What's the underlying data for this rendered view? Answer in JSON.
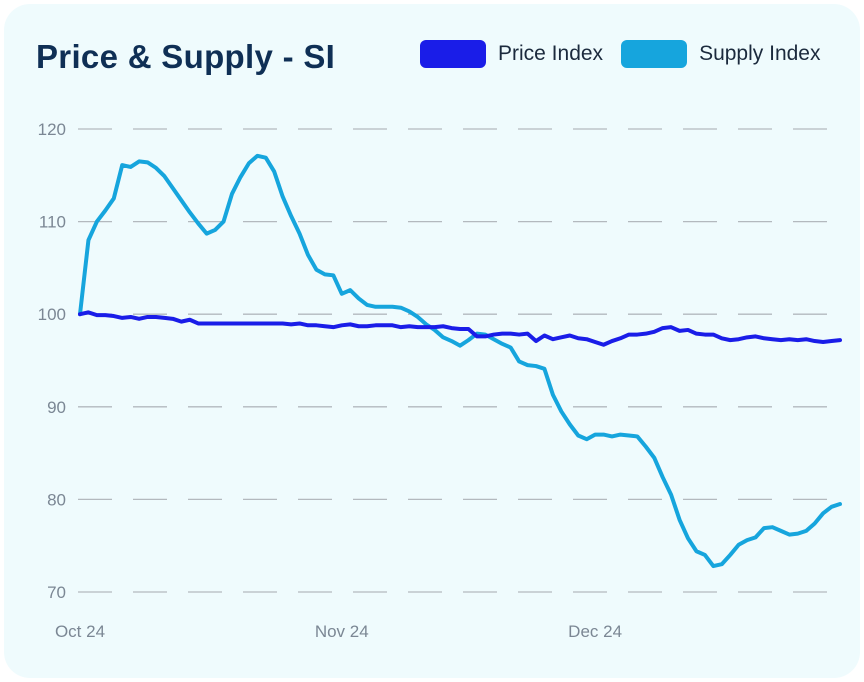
{
  "chart_data": {
    "type": "line",
    "title": "Price & Supply - SI",
    "xlabel": "",
    "ylabel": "",
    "ylim": [
      70,
      120
    ],
    "yticks": [
      120,
      110,
      100,
      90,
      80,
      70
    ],
    "xticks": [
      {
        "label": "Oct 24",
        "index": 0
      },
      {
        "label": "Nov 24",
        "index": 31
      },
      {
        "label": "Dec 24",
        "index": 61
      }
    ],
    "grid": true,
    "legend_position": "top-right",
    "series": [
      {
        "name": "Price Index",
        "color": "#1a1de8",
        "values": [
          100,
          100.2,
          99.9,
          99.9,
          99.8,
          99.6,
          99.7,
          99.5,
          99.7,
          99.7,
          99.6,
          99.5,
          99.2,
          99.4,
          99.0,
          99.0,
          99.0,
          99.0,
          99.0,
          99.0,
          99.0,
          99.0,
          99.0,
          99.0,
          99.0,
          98.9,
          99.0,
          98.8,
          98.8,
          98.7,
          98.6,
          98.8,
          98.9,
          98.7,
          98.7,
          98.8,
          98.8,
          98.8,
          98.6,
          98.7,
          98.6,
          98.6,
          98.6,
          98.7,
          98.5,
          98.4,
          98.4,
          97.6,
          97.6,
          97.8,
          97.9,
          97.9,
          97.8,
          97.9,
          97.1,
          97.7,
          97.3,
          97.5,
          97.7,
          97.4,
          97.3,
          97.0,
          96.7,
          97.1,
          97.4,
          97.8,
          97.8,
          97.9,
          98.1,
          98.5,
          98.6,
          98.2,
          98.3,
          97.9,
          97.8,
          97.8,
          97.4,
          97.2,
          97.3,
          97.5,
          97.6,
          97.4,
          97.3,
          97.2,
          97.3,
          97.2,
          97.3,
          97.1,
          97.0,
          97.1,
          97.2
        ]
      },
      {
        "name": "Supply Index",
        "color": "#16a5dd",
        "values": [
          100,
          108,
          110,
          111.2,
          112.5,
          116.1,
          115.9,
          116.5,
          116.4,
          115.8,
          114.9,
          113.6,
          112.3,
          111,
          109.8,
          108.7,
          109.1,
          110,
          113,
          114.8,
          116.3,
          117.1,
          116.9,
          115.4,
          112.7,
          110.6,
          108.7,
          106.4,
          104.8,
          104.3,
          104.2,
          102.2,
          102.6,
          101.7,
          101.0,
          100.8,
          100.8,
          100.8,
          100.7,
          100.3,
          99.7,
          98.9,
          98.3,
          97.5,
          97.1,
          96.6,
          97.2,
          97.9,
          97.8,
          97.3,
          96.8,
          96.4,
          94.9,
          94.5,
          94.4,
          94.1,
          91.3,
          89.5,
          88.1,
          86.9,
          86.5,
          87,
          87,
          86.8,
          87,
          86.9,
          86.8,
          85.7,
          84.5,
          82.4,
          80.5,
          77.8,
          75.8,
          74.4,
          74.0,
          72.8,
          73.0,
          74.0,
          75.1,
          75.6,
          75.9,
          76.9,
          77.0,
          76.6,
          76.2,
          76.3,
          76.6,
          77.4,
          78.5,
          79.2,
          79.5
        ]
      }
    ]
  }
}
